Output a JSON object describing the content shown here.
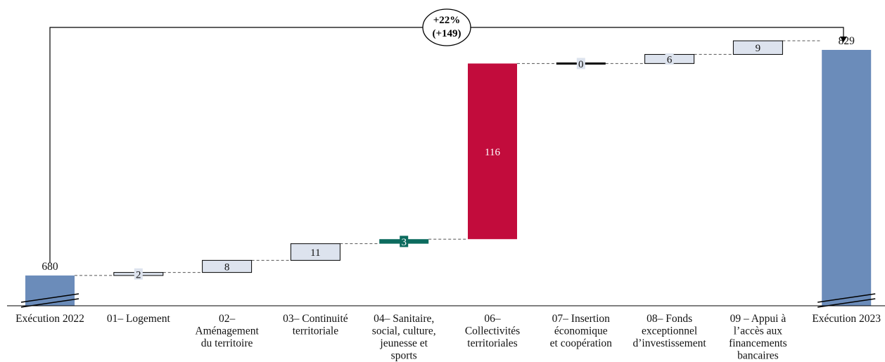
{
  "chart_data": {
    "type": "bar",
    "subtype": "waterfall",
    "categories": [
      "Exécution 2022",
      "01– Logement",
      "02– Aménagement du territoire",
      "03– Continuité territoriale",
      "04– Sanitaire, social, culture, jeunesse et sports",
      "06– Collectivités territoriales",
      "07– Insertion économique et coopération",
      "08– Fonds exceptionnel d’investissement",
      "09 – Appui à l’accès aux financements bancaires",
      "Exécution 2023"
    ],
    "category_lines": [
      [
        "Exécution 2022"
      ],
      [
        "01– Logement"
      ],
      [
        "02–",
        "Aménagement",
        "du territoire"
      ],
      [
        "03– Continuité",
        "territoriale"
      ],
      [
        "04– Sanitaire,",
        "social, culture,",
        "jeunesse et",
        "sports"
      ],
      [
        "06–",
        "Collectivités",
        "territoriales"
      ],
      [
        "07– Insertion",
        "économique",
        "et coopération"
      ],
      [
        "08– Fonds",
        "exceptionnel",
        "d’investissement"
      ],
      [
        "09 – Appui à",
        "l’accès aux",
        "financements",
        "bancaires"
      ],
      [
        "Exécution 2023"
      ]
    ],
    "bar_kinds": [
      "total",
      "delta",
      "delta",
      "delta",
      "delta",
      "delta",
      "delta",
      "delta",
      "delta",
      "total"
    ],
    "values": [
      680,
      2,
      8,
      11,
      3,
      116,
      0,
      6,
      9,
      829
    ],
    "labels": [
      "680",
      "2",
      "8",
      "11",
      "3",
      "116",
      "0",
      "6",
      "9",
      "829"
    ],
    "colors": {
      "total": "#6b8cba",
      "delta": "#dde3ee",
      "highlight_dark": "#c20c3c",
      "highlight_teal": "#0c6b5e",
      "zero": "#000000",
      "outline": "#000000"
    },
    "bar_colors": [
      "total",
      "delta",
      "delta",
      "delta",
      "highlight_teal",
      "highlight_dark",
      "zero",
      "delta",
      "delta",
      "total"
    ],
    "axis_break": true,
    "annotation": {
      "line1": "+22%",
      "line2": "(+149)"
    }
  }
}
